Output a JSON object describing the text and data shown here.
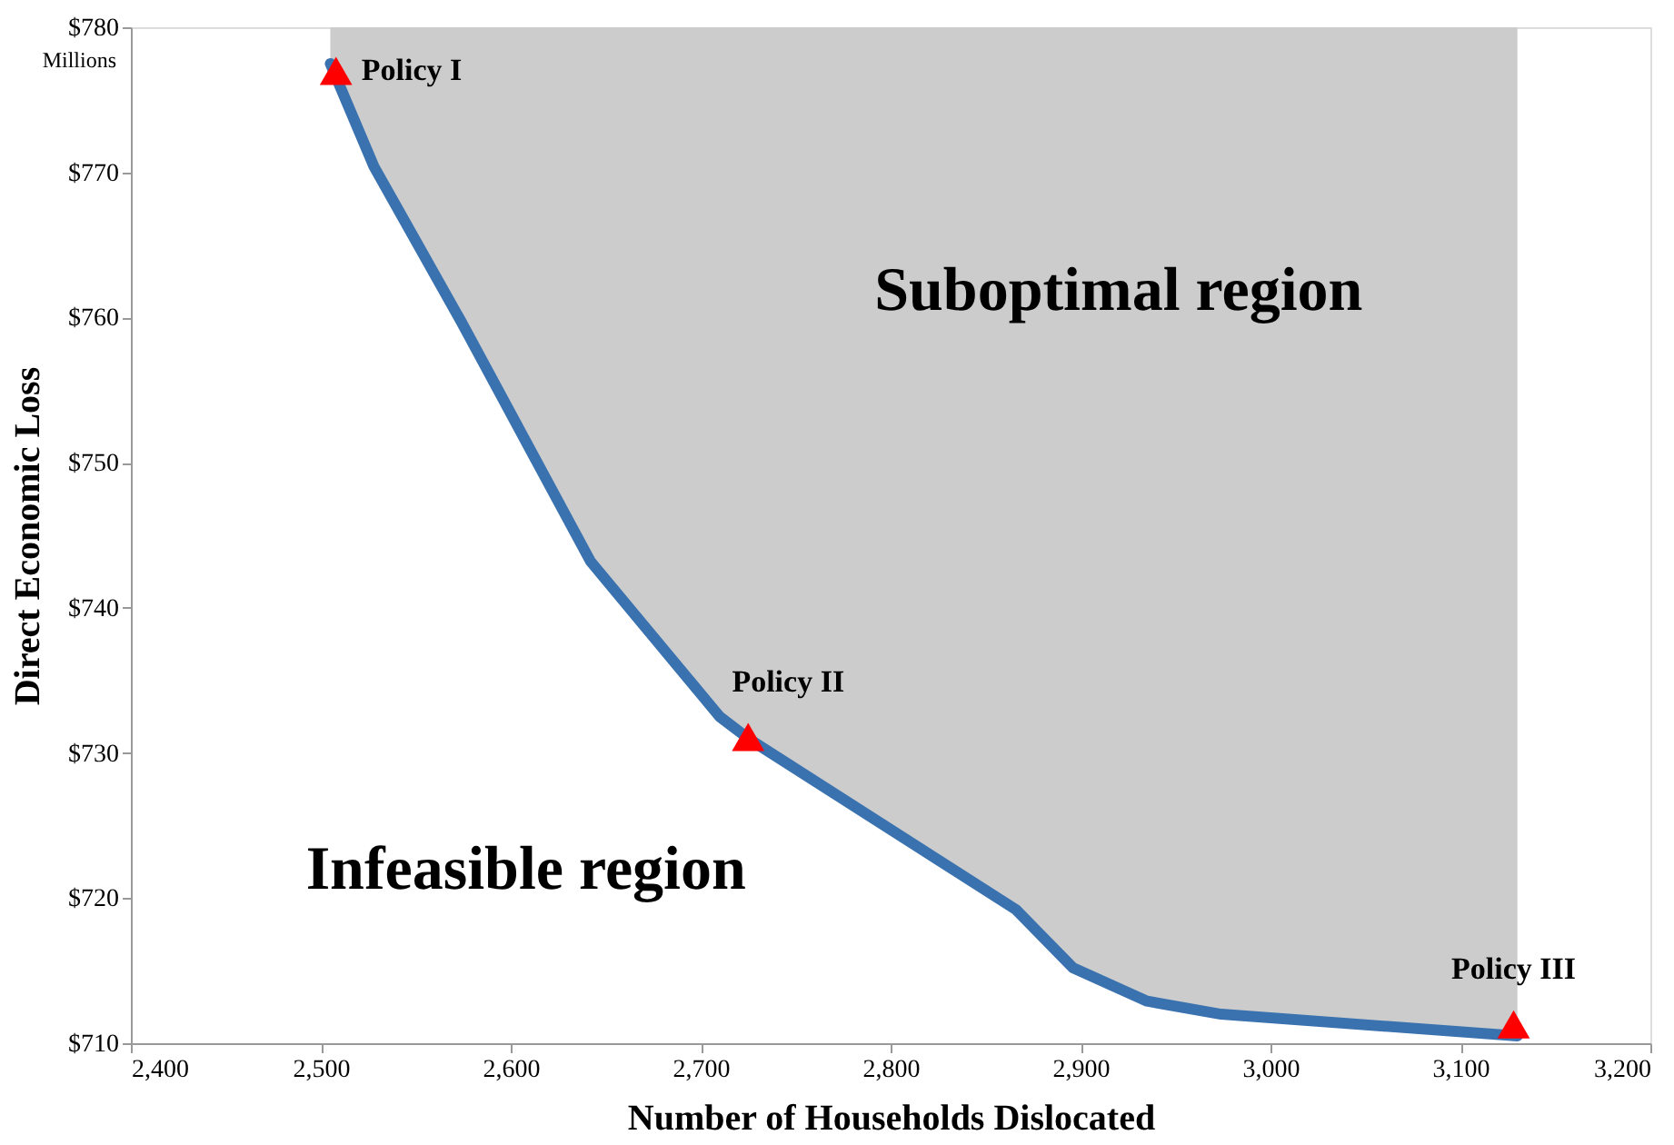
{
  "chart_data": {
    "type": "line",
    "xlabel": "Number of Households Dislocated",
    "ylabel": "Direct Economic Loss",
    "xlim": [
      2400,
      3200
    ],
    "ylim": [
      710,
      780
    ],
    "xticks": [
      {
        "value": 2400,
        "label": "2,400"
      },
      {
        "value": 2500,
        "label": "2,500"
      },
      {
        "value": 2600,
        "label": "2,600"
      },
      {
        "value": 2700,
        "label": "2,700"
      },
      {
        "value": 2800,
        "label": "2,800"
      },
      {
        "value": 2900,
        "label": "2,900"
      },
      {
        "value": 3000,
        "label": "3,000"
      },
      {
        "value": 3100,
        "label": "3,100"
      },
      {
        "value": 3200,
        "label": "3,200"
      }
    ],
    "yticks": [
      {
        "value": 710,
        "label": "$710"
      },
      {
        "value": 720,
        "label": "$720"
      },
      {
        "value": 730,
        "label": "$730"
      },
      {
        "value": 740,
        "label": "$740"
      },
      {
        "value": 750,
        "label": "$750"
      },
      {
        "value": 760,
        "label": "$760"
      },
      {
        "value": 770,
        "label": "$770"
      },
      {
        "value": 780,
        "label": "$780"
      }
    ],
    "series": [
      {
        "color": "#3a72b0",
        "x": [
          2505,
          2528,
          2574,
          2642,
          2710,
          2725,
          2866,
          2896,
          2935,
          2974,
          3130
        ],
        "values": [
          777.5,
          770.4,
          759.7,
          743.2,
          732.5,
          731,
          719.2,
          715.2,
          712.9,
          712,
          710.5
        ],
        "lower": [
          777.5,
          770.4,
          759.7,
          743.2,
          732.5,
          731,
          719.2,
          715.2,
          712.9,
          712,
          710.5
        ],
        "upper": [
          780,
          780,
          780,
          780,
          780,
          780,
          780,
          780,
          780,
          780,
          780
        ]
      },
      {
        "type": "scatter",
        "color": "#ff0000",
        "marker": "triangle",
        "x": [
          2508,
          2725,
          3128
        ],
        "values": [
          777,
          731.1,
          711.3
        ]
      }
    ],
    "annotations": [
      {
        "text": "Policy I",
        "x": 2508,
        "y": 777
      },
      {
        "text": "Policy II",
        "x": 2725,
        "y": 731.1
      },
      {
        "text": "Policy III",
        "x": 3128,
        "y": 711.3
      },
      "Suboptimal region",
      "Infeasible region",
      "Millions"
    ],
    "grid": false
  }
}
